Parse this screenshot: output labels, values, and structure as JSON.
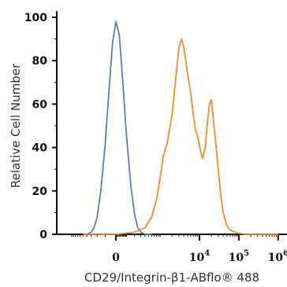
{
  "chart_data": {
    "type": "line",
    "xlabel": "CD29/Integrin-β1-ABflo® 488",
    "ylabel": "Relative Cell Number",
    "ylim": [
      0,
      100
    ],
    "y_ticks": [
      "0",
      "20",
      "40",
      "60",
      "80",
      "100"
    ],
    "x_scale": "biexponential",
    "x_ticks": [
      {
        "value": 0,
        "label": "0",
        "base": "",
        "exp": ""
      },
      {
        "value": 10000,
        "label": "10^4",
        "base": "10",
        "exp": "4"
      },
      {
        "value": 100000,
        "label": "10^5",
        "base": "10",
        "exp": "5"
      },
      {
        "value": 1000000,
        "label": "10^6",
        "base": "10",
        "exp": "6"
      }
    ],
    "grid": false,
    "legend": "none",
    "series": [
      {
        "color": "#5b7fa8",
        "x": [
          -400,
          -300,
          -250,
          -200,
          -150,
          -100,
          -60,
          -30,
          0,
          30,
          60,
          100,
          150,
          200,
          250,
          300,
          400,
          600
        ],
        "y": [
          0,
          1,
          3,
          8,
          20,
          42,
          68,
          88,
          98,
          92,
          72,
          45,
          22,
          9,
          3,
          1,
          0,
          0
        ]
      },
      {
        "color": "#f28c28",
        "x": [
          -500,
          0,
          200,
          400,
          600,
          800,
          1000,
          1200,
          1500,
          2000,
          2500,
          3000,
          3500,
          4000,
          5000,
          6000,
          7000,
          8000,
          9000,
          10000,
          11000,
          12000,
          14000,
          16000,
          18000,
          20000,
          22000,
          25000,
          30000,
          35000,
          40000,
          50000,
          60000,
          80000,
          100000,
          150000,
          1000000
        ],
        "y": [
          0,
          0,
          1,
          3,
          8,
          16,
          26,
          36,
          42,
          55,
          72,
          86,
          90,
          86,
          74,
          65,
          55,
          48,
          45,
          41,
          37,
          35,
          40,
          52,
          60,
          62,
          55,
          45,
          30,
          18,
          10,
          4,
          2,
          1,
          0.5,
          0,
          0
        ]
      }
    ]
  }
}
